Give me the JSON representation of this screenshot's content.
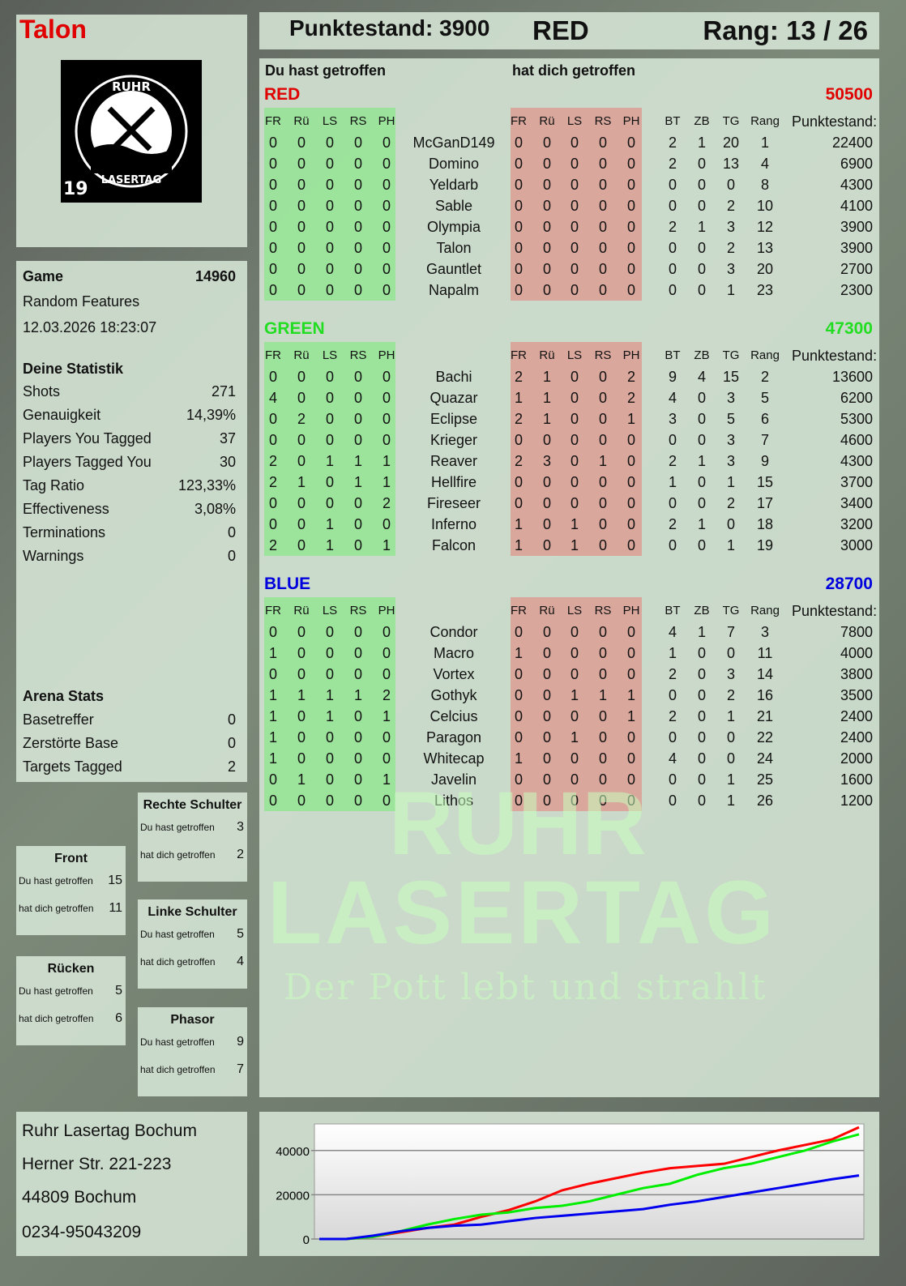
{
  "player": {
    "name": "Talon",
    "logo_text": "RUHR LASERTAG",
    "logo_badge": "19"
  },
  "header": {
    "score_label": "Punktestand: 3900",
    "team": "RED",
    "rank": "Rang: 13 / 26"
  },
  "game": {
    "label": "Game",
    "id": "14960",
    "mode": "Random Features",
    "datetime": "12.03.2026 18:23:07"
  },
  "stats": {
    "title": "Deine Statistik",
    "rows": [
      {
        "label": "Shots",
        "value": "271"
      },
      {
        "label": "Genauigkeit",
        "value": "14,39%"
      },
      {
        "label": "Players You Tagged",
        "value": "37"
      },
      {
        "label": "Players Tagged You",
        "value": "30"
      },
      {
        "label": "Tag Ratio",
        "value": "123,33%"
      },
      {
        "label": "Effectiveness",
        "value": "3,08%"
      },
      {
        "label": "Terminations",
        "value": "0"
      },
      {
        "label": "Warnings",
        "value": "0"
      }
    ]
  },
  "arena": {
    "title": "Arena Stats",
    "rows": [
      {
        "label": "Basetreffer",
        "value": "0"
      },
      {
        "label": "Zerstörte Base",
        "value": "0"
      },
      {
        "label": "Targets Tagged",
        "value": "2"
      }
    ]
  },
  "zones": [
    {
      "title": "Front",
      "hit_label": "Du hast getroffen",
      "hit": "15",
      "got_label": "hat dich getroffen",
      "got": "11"
    },
    {
      "title": "Rechte Schulter",
      "hit_label": "Du hast getroffen",
      "hit": "3",
      "got_label": "hat dich getroffen",
      "got": "2"
    },
    {
      "title": "Linke Schulter",
      "hit_label": "Du hast getroffen",
      "hit": "5",
      "got_label": "hat dich getroffen",
      "got": "4"
    },
    {
      "title": "Rücken",
      "hit_label": "Du hast getroffen",
      "hit": "5",
      "got_label": "hat dich getroffen",
      "got": "6"
    },
    {
      "title": "Phasor",
      "hit_label": "Du hast getroffen",
      "hit": "9",
      "got_label": "hat dich getroffen",
      "got": "7"
    }
  ],
  "address": {
    "line1": "Ruhr Lasertag Bochum",
    "line2": "Herner Str. 221-223",
    "line3": "44809 Bochum",
    "phone": "0234-95043209"
  },
  "table": {
    "hit_header": "Du hast getroffen",
    "got_header": "hat dich getroffen",
    "zone_cols": [
      "FR",
      "Rü",
      "LS",
      "RS",
      "PH"
    ],
    "stat_cols": [
      "BT",
      "ZB",
      "TG",
      "Rang"
    ],
    "score_col": "Punktestand:",
    "teams": [
      {
        "name": "RED",
        "total": "50500",
        "color": "#e00000",
        "players": [
          {
            "n": "McGanD149",
            "h": [
              0,
              0,
              0,
              0,
              0
            ],
            "g": [
              0,
              0,
              0,
              0,
              0
            ],
            "s": [
              2,
              1,
              20,
              1
            ],
            "p": "22400"
          },
          {
            "n": "Domino",
            "h": [
              0,
              0,
              0,
              0,
              0
            ],
            "g": [
              0,
              0,
              0,
              0,
              0
            ],
            "s": [
              2,
              0,
              13,
              4
            ],
            "p": "6900"
          },
          {
            "n": "Yeldarb",
            "h": [
              0,
              0,
              0,
              0,
              0
            ],
            "g": [
              0,
              0,
              0,
              0,
              0
            ],
            "s": [
              0,
              0,
              0,
              8
            ],
            "p": "4300"
          },
          {
            "n": "Sable",
            "h": [
              0,
              0,
              0,
              0,
              0
            ],
            "g": [
              0,
              0,
              0,
              0,
              0
            ],
            "s": [
              0,
              0,
              2,
              10
            ],
            "p": "4100"
          },
          {
            "n": "Olympia",
            "h": [
              0,
              0,
              0,
              0,
              0
            ],
            "g": [
              0,
              0,
              0,
              0,
              0
            ],
            "s": [
              2,
              1,
              3,
              12
            ],
            "p": "3900"
          },
          {
            "n": "Talon",
            "h": [
              0,
              0,
              0,
              0,
              0
            ],
            "g": [
              0,
              0,
              0,
              0,
              0
            ],
            "s": [
              0,
              0,
              2,
              13
            ],
            "p": "3900"
          },
          {
            "n": "Gauntlet",
            "h": [
              0,
              0,
              0,
              0,
              0
            ],
            "g": [
              0,
              0,
              0,
              0,
              0
            ],
            "s": [
              0,
              0,
              3,
              20
            ],
            "p": "2700"
          },
          {
            "n": "Napalm",
            "h": [
              0,
              0,
              0,
              0,
              0
            ],
            "g": [
              0,
              0,
              0,
              0,
              0
            ],
            "s": [
              0,
              0,
              1,
              23
            ],
            "p": "2300"
          }
        ]
      },
      {
        "name": "GREEN",
        "total": "47300",
        "color": "#22dd22",
        "players": [
          {
            "n": "Bachi",
            "h": [
              0,
              0,
              0,
              0,
              0
            ],
            "g": [
              2,
              1,
              0,
              0,
              2
            ],
            "s": [
              9,
              4,
              15,
              2
            ],
            "p": "13600"
          },
          {
            "n": "Quazar",
            "h": [
              4,
              0,
              0,
              0,
              0
            ],
            "g": [
              1,
              1,
              0,
              0,
              2
            ],
            "s": [
              4,
              0,
              3,
              5
            ],
            "p": "6200"
          },
          {
            "n": "Eclipse",
            "h": [
              0,
              2,
              0,
              0,
              0
            ],
            "g": [
              2,
              1,
              0,
              0,
              1
            ],
            "s": [
              3,
              0,
              5,
              6
            ],
            "p": "5300"
          },
          {
            "n": "Krieger",
            "h": [
              0,
              0,
              0,
              0,
              0
            ],
            "g": [
              0,
              0,
              0,
              0,
              0
            ],
            "s": [
              0,
              0,
              3,
              7
            ],
            "p": "4600"
          },
          {
            "n": "Reaver",
            "h": [
              2,
              0,
              1,
              1,
              1
            ],
            "g": [
              2,
              3,
              0,
              1,
              0
            ],
            "s": [
              2,
              1,
              3,
              9
            ],
            "p": "4300"
          },
          {
            "n": "Hellfire",
            "h": [
              2,
              1,
              0,
              1,
              1
            ],
            "g": [
              0,
              0,
              0,
              0,
              0
            ],
            "s": [
              1,
              0,
              1,
              15
            ],
            "p": "3700"
          },
          {
            "n": "Fireseer",
            "h": [
              0,
              0,
              0,
              0,
              2
            ],
            "g": [
              0,
              0,
              0,
              0,
              0
            ],
            "s": [
              0,
              0,
              2,
              17
            ],
            "p": "3400"
          },
          {
            "n": "Inferno",
            "h": [
              0,
              0,
              1,
              0,
              0
            ],
            "g": [
              1,
              0,
              1,
              0,
              0
            ],
            "s": [
              2,
              1,
              0,
              18
            ],
            "p": "3200"
          },
          {
            "n": "Falcon",
            "h": [
              2,
              0,
              1,
              0,
              1
            ],
            "g": [
              1,
              0,
              1,
              0,
              0
            ],
            "s": [
              0,
              0,
              1,
              19
            ],
            "p": "3000"
          }
        ]
      },
      {
        "name": "BLUE",
        "total": "28700",
        "color": "#0000dd",
        "players": [
          {
            "n": "Condor",
            "h": [
              0,
              0,
              0,
              0,
              0
            ],
            "g": [
              0,
              0,
              0,
              0,
              0
            ],
            "s": [
              4,
              1,
              7,
              3
            ],
            "p": "7800"
          },
          {
            "n": "Macro",
            "h": [
              1,
              0,
              0,
              0,
              0
            ],
            "g": [
              1,
              0,
              0,
              0,
              0
            ],
            "s": [
              1,
              0,
              0,
              11
            ],
            "p": "4000"
          },
          {
            "n": "Vortex",
            "h": [
              0,
              0,
              0,
              0,
              0
            ],
            "g": [
              0,
              0,
              0,
              0,
              0
            ],
            "s": [
              2,
              0,
              3,
              14
            ],
            "p": "3800"
          },
          {
            "n": "Gothyk",
            "h": [
              1,
              1,
              1,
              1,
              2
            ],
            "g": [
              0,
              0,
              1,
              1,
              1
            ],
            "s": [
              0,
              0,
              2,
              16
            ],
            "p": "3500"
          },
          {
            "n": "Celcius",
            "h": [
              1,
              0,
              1,
              0,
              1
            ],
            "g": [
              0,
              0,
              0,
              0,
              1
            ],
            "s": [
              2,
              0,
              1,
              21
            ],
            "p": "2400"
          },
          {
            "n": "Paragon",
            "h": [
              1,
              0,
              0,
              0,
              0
            ],
            "g": [
              0,
              0,
              1,
              0,
              0
            ],
            "s": [
              0,
              0,
              0,
              22
            ],
            "p": "2400"
          },
          {
            "n": "Whitecap",
            "h": [
              1,
              0,
              0,
              0,
              0
            ],
            "g": [
              1,
              0,
              0,
              0,
              0
            ],
            "s": [
              4,
              0,
              0,
              24
            ],
            "p": "2000"
          },
          {
            "n": "Javelin",
            "h": [
              0,
              1,
              0,
              0,
              1
            ],
            "g": [
              0,
              0,
              0,
              0,
              0
            ],
            "s": [
              0,
              0,
              1,
              25
            ],
            "p": "1600"
          },
          {
            "n": "Lithos",
            "h": [
              0,
              0,
              0,
              0,
              0
            ],
            "g": [
              0,
              0,
              0,
              0,
              0
            ],
            "s": [
              0,
              0,
              1,
              26
            ],
            "p": "1200"
          }
        ]
      }
    ]
  },
  "watermark": {
    "line1": "RUHR",
    "line2": "LASERTAG",
    "line3": "Der Pott lebt und strahlt"
  },
  "chart_data": {
    "type": "line",
    "ylim": [
      0,
      52000
    ],
    "yticks": [
      "0",
      "20000",
      "40000"
    ],
    "grid": true,
    "legend": "none",
    "series": [
      {
        "color": "#ff0000",
        "values": [
          0,
          0,
          1000,
          3000,
          5000,
          6500,
          10000,
          13000,
          17000,
          22000,
          25000,
          27500,
          30000,
          32000,
          33000,
          34000,
          37000,
          40000,
          42500,
          45000,
          50500
        ]
      },
      {
        "color": "#00ee00",
        "values": [
          0,
          0,
          1000,
          3500,
          6500,
          9000,
          11000,
          12000,
          14000,
          15000,
          17000,
          20000,
          23000,
          25000,
          29000,
          32000,
          34000,
          37000,
          40000,
          44000,
          47300
        ]
      },
      {
        "color": "#0000ee",
        "values": [
          0,
          0,
          1500,
          3500,
          5000,
          6000,
          6500,
          8000,
          9500,
          10500,
          11500,
          12500,
          13500,
          15500,
          17000,
          19000,
          21000,
          23000,
          25000,
          27000,
          28700
        ]
      }
    ]
  }
}
